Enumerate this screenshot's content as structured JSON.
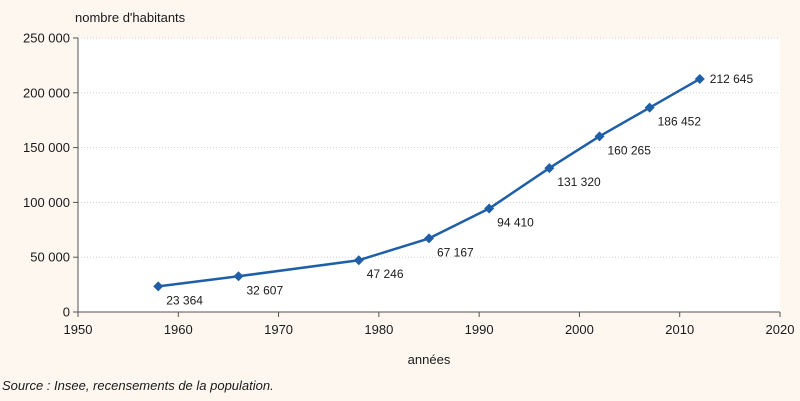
{
  "chart_data": {
    "type": "line",
    "ylabel": "nombre d'habitants",
    "xlabel": "années",
    "xlim": [
      1950,
      2020
    ],
    "ylim": [
      0,
      250000
    ],
    "x_ticks": [
      1950,
      1960,
      1970,
      1980,
      1990,
      2000,
      2010,
      2020
    ],
    "x_tick_labels": [
      "1950",
      "1960",
      "1970",
      "1980",
      "1990",
      "2000",
      "2010",
      "2020"
    ],
    "y_ticks": [
      0,
      50000,
      100000,
      150000,
      200000,
      250000
    ],
    "y_tick_labels": [
      "0",
      "50 000",
      "100 000",
      "150 000",
      "200 000",
      "250 000"
    ],
    "grid": "horizontal",
    "series": [
      {
        "color": "#1f5fa8",
        "marker": "diamond",
        "x": [
          1958,
          1966,
          1978,
          1985,
          1991,
          1997,
          2002,
          2007,
          2012
        ],
        "y": [
          23364,
          32607,
          47246,
          67167,
          94410,
          131320,
          160265,
          186452,
          212645
        ],
        "labels": [
          "23 364",
          "32 607",
          "47 246",
          "67 167",
          "94 410",
          "131 320",
          "160 265",
          "186 452",
          "212 645"
        ]
      }
    ]
  },
  "source": "Source : Insee, recensements de la population."
}
